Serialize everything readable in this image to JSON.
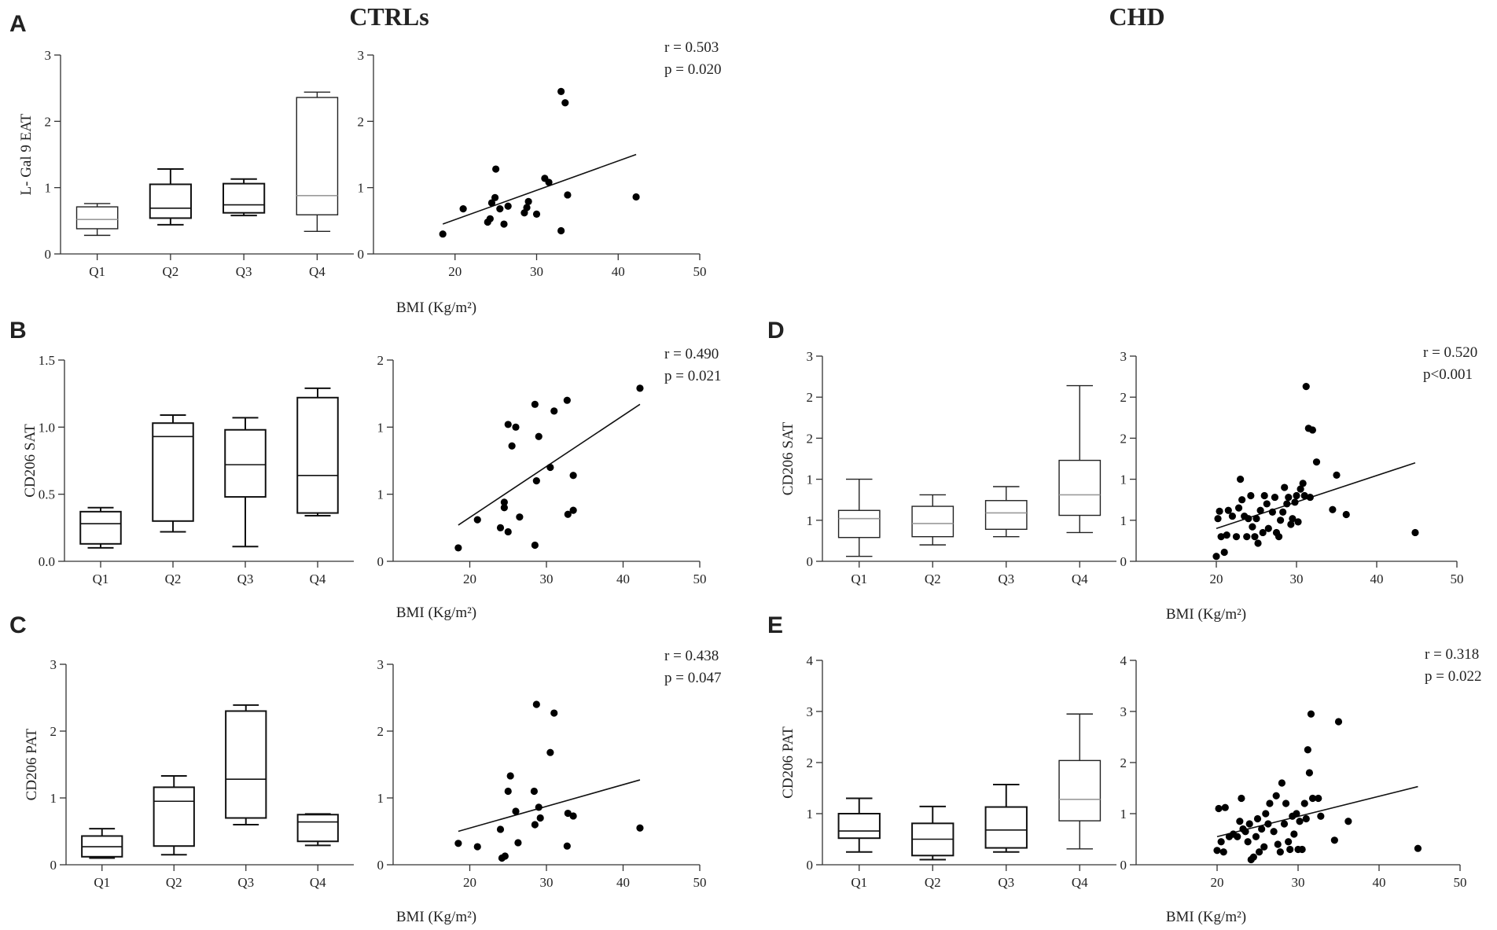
{
  "figure": {
    "column_titles": [
      "CTRLs",
      "CHD"
    ],
    "panel_letters": [
      "A",
      "B",
      "C",
      "D",
      "E"
    ]
  },
  "chart_data": [
    {
      "id": "A-box",
      "type": "box",
      "panel": "A",
      "group": "CTRLs",
      "ylabel": "L- Gal 9 EAT",
      "ylim": [
        0,
        3
      ],
      "yticks": [
        "0",
        "1",
        "2",
        "3"
      ],
      "categories": [
        "Q1",
        "Q2",
        "Q3",
        "Q4"
      ],
      "boxes": [
        {
          "min": 0.28,
          "q1": 0.38,
          "median": 0.52,
          "q3": 0.71,
          "max": 0.76,
          "style": "thin"
        },
        {
          "min": 0.44,
          "q1": 0.54,
          "median": 0.69,
          "q3": 1.05,
          "max": 1.28,
          "style": "thick"
        },
        {
          "min": 0.58,
          "q1": 0.62,
          "median": 0.74,
          "q3": 1.06,
          "max": 1.13,
          "style": "thick"
        },
        {
          "min": 0.34,
          "q1": 0.59,
          "median": 0.88,
          "q3": 2.36,
          "max": 2.44,
          "style": "thin"
        }
      ]
    },
    {
      "id": "A-scatter",
      "type": "scatter",
      "panel": "A",
      "group": "CTRLs",
      "xlim": [
        10,
        50
      ],
      "ylim": [
        0,
        3
      ],
      "xticks": [
        20,
        30,
        40,
        50
      ],
      "yticks": [
        "0",
        "1",
        "2",
        "3"
      ],
      "xlabel": "BMI (Kg/m²)",
      "stats": {
        "r": "r = 0.503",
        "p": "p = 0.020"
      },
      "points": [
        [
          18.5,
          0.3
        ],
        [
          21,
          0.68
        ],
        [
          24,
          0.48
        ],
        [
          24.3,
          0.53
        ],
        [
          24.5,
          0.77
        ],
        [
          24.9,
          0.85
        ],
        [
          25,
          1.28
        ],
        [
          25.5,
          0.68
        ],
        [
          26,
          0.45
        ],
        [
          26.5,
          0.72
        ],
        [
          28.5,
          0.62
        ],
        [
          28.8,
          0.7
        ],
        [
          29,
          0.79
        ],
        [
          30,
          0.6
        ],
        [
          31,
          1.14
        ],
        [
          31.5,
          1.08
        ],
        [
          33,
          0.35
        ],
        [
          33,
          2.45
        ],
        [
          33.5,
          2.28
        ],
        [
          33.8,
          0.89
        ],
        [
          42.2,
          0.86
        ]
      ],
      "fit": [
        [
          18.5,
          0.45
        ],
        [
          42.2,
          1.5
        ]
      ]
    },
    {
      "id": "B-box",
      "type": "box",
      "panel": "B",
      "group": "CTRLs",
      "ylabel": "CD206 SAT",
      "ylim": [
        0,
        1.5
      ],
      "yticks": [
        "0.0",
        "0.5",
        "1.0",
        "1.5"
      ],
      "categories": [
        "Q1",
        "Q2",
        "Q3",
        "Q4"
      ],
      "boxes": [
        {
          "min": 0.1,
          "q1": 0.13,
          "median": 0.28,
          "q3": 0.37,
          "max": 0.4,
          "style": "thick"
        },
        {
          "min": 0.22,
          "q1": 0.3,
          "median": 0.93,
          "q3": 1.03,
          "max": 1.09,
          "style": "thick"
        },
        {
          "min": 0.11,
          "q1": 0.48,
          "median": 0.72,
          "q3": 0.98,
          "max": 1.07,
          "style": "thick"
        },
        {
          "min": 0.34,
          "q1": 0.36,
          "median": 0.64,
          "q3": 1.22,
          "max": 1.29,
          "style": "thick"
        }
      ]
    },
    {
      "id": "B-scatter",
      "type": "scatter",
      "panel": "B",
      "group": "CTRLs",
      "xlim": [
        10,
        50
      ],
      "ylim": [
        0,
        1.5
      ],
      "xticks": [
        20,
        30,
        40,
        50
      ],
      "yticks": [
        "0",
        "1",
        "1",
        "2"
      ],
      "xlabel": "BMI (Kg/m²)",
      "stats": {
        "r": "r = 0.490",
        "p": "p = 0.021"
      },
      "points": [
        [
          18.5,
          0.1
        ],
        [
          21,
          0.31
        ],
        [
          24,
          0.25
        ],
        [
          24.5,
          0.4
        ],
        [
          24.5,
          0.44
        ],
        [
          25,
          0.22
        ],
        [
          25,
          1.02
        ],
        [
          25.5,
          0.86
        ],
        [
          26,
          1.0
        ],
        [
          26.5,
          0.33
        ],
        [
          28.5,
          0.12
        ],
        [
          28.5,
          1.17
        ],
        [
          28.7,
          0.6
        ],
        [
          29,
          0.93
        ],
        [
          30.5,
          0.7
        ],
        [
          31,
          1.12
        ],
        [
          32.7,
          1.2
        ],
        [
          32.8,
          0.35
        ],
        [
          33.5,
          0.38
        ],
        [
          33.5,
          0.64
        ],
        [
          42.2,
          1.29
        ]
      ],
      "fit": [
        [
          18.5,
          0.27
        ],
        [
          42.2,
          1.17
        ]
      ]
    },
    {
      "id": "C-box",
      "type": "box",
      "panel": "C",
      "group": "CTRLs",
      "ylabel": "CD206 PAT",
      "ylim": [
        0,
        3
      ],
      "yticks": [
        "0",
        "1",
        "2",
        "3"
      ],
      "categories": [
        "Q1",
        "Q2",
        "Q3",
        "Q4"
      ],
      "boxes": [
        {
          "min": 0.1,
          "q1": 0.12,
          "median": 0.27,
          "q3": 0.43,
          "max": 0.54,
          "style": "thick"
        },
        {
          "min": 0.15,
          "q1": 0.28,
          "median": 0.95,
          "q3": 1.16,
          "max": 1.33,
          "style": "thick"
        },
        {
          "min": 0.6,
          "q1": 0.7,
          "median": 1.28,
          "q3": 2.3,
          "max": 2.39,
          "style": "thick"
        },
        {
          "min": 0.29,
          "q1": 0.35,
          "median": 0.64,
          "q3": 0.75,
          "max": 0.76,
          "style": "thick"
        }
      ]
    },
    {
      "id": "C-scatter",
      "type": "scatter",
      "panel": "C",
      "group": "CTRLs",
      "xlim": [
        10,
        50
      ],
      "ylim": [
        0,
        3
      ],
      "xticks": [
        20,
        30,
        40,
        50
      ],
      "yticks": [
        "0",
        "1",
        "2",
        "3"
      ],
      "xlabel": "BMI (Kg/m²)",
      "stats": {
        "r": "r = 0.438",
        "p": "p = 0.047"
      },
      "points": [
        [
          18.5,
          0.32
        ],
        [
          21,
          0.27
        ],
        [
          24,
          0.53
        ],
        [
          24.2,
          0.1
        ],
        [
          24.6,
          0.13
        ],
        [
          25,
          1.1
        ],
        [
          25.3,
          1.33
        ],
        [
          26,
          0.8
        ],
        [
          26.3,
          0.33
        ],
        [
          28.4,
          1.1
        ],
        [
          28.5,
          0.6
        ],
        [
          28.7,
          2.4
        ],
        [
          29,
          0.86
        ],
        [
          29.2,
          0.7
        ],
        [
          30.5,
          1.68
        ],
        [
          31,
          2.27
        ],
        [
          32.7,
          0.28
        ],
        [
          32.8,
          0.77
        ],
        [
          33.5,
          0.73
        ],
        [
          42.2,
          0.55
        ]
      ],
      "fit": [
        [
          18.5,
          0.5
        ],
        [
          42.2,
          1.27
        ]
      ]
    },
    {
      "id": "D-box",
      "type": "box",
      "panel": "D",
      "group": "CHD",
      "ylabel": "CD206 SAT",
      "ylim": [
        0,
        2.5
      ],
      "yticks": [
        "0",
        "1",
        "1",
        "2",
        "2",
        "3"
      ],
      "categories": [
        "Q1",
        "Q2",
        "Q3",
        "Q4"
      ],
      "boxes": [
        {
          "min": 0.06,
          "q1": 0.29,
          "median": 0.52,
          "q3": 0.62,
          "max": 1.0,
          "style": "thin"
        },
        {
          "min": 0.2,
          "q1": 0.3,
          "median": 0.46,
          "q3": 0.67,
          "max": 0.81,
          "style": "thin"
        },
        {
          "min": 0.3,
          "q1": 0.39,
          "median": 0.59,
          "q3": 0.74,
          "max": 0.91,
          "style": "thin"
        },
        {
          "min": 0.35,
          "q1": 0.56,
          "median": 0.81,
          "q3": 1.23,
          "max": 2.14,
          "style": "thin"
        }
      ]
    },
    {
      "id": "D-scatter",
      "type": "scatter",
      "panel": "D",
      "group": "CHD",
      "xlim": [
        10,
        50
      ],
      "ylim": [
        0,
        2.5
      ],
      "xticks": [
        20,
        30,
        40,
        50
      ],
      "yticks": [
        "0",
        "1",
        "1",
        "2",
        "2",
        "3"
      ],
      "xlabel": "BMI (Kg/m²)",
      "stats": {
        "r": "r = 0.520",
        "p": "p<0.001"
      },
      "points": [
        [
          20,
          0.06
        ],
        [
          20.2,
          0.52
        ],
        [
          20.4,
          0.61
        ],
        [
          20.6,
          0.3
        ],
        [
          21,
          0.11
        ],
        [
          21.3,
          0.32
        ],
        [
          21.5,
          0.62
        ],
        [
          22,
          0.55
        ],
        [
          22.5,
          0.3
        ],
        [
          22.8,
          0.65
        ],
        [
          23,
          1.0
        ],
        [
          23.2,
          0.75
        ],
        [
          23.5,
          0.55
        ],
        [
          23.8,
          0.3
        ],
        [
          24,
          0.52
        ],
        [
          24.3,
          0.8
        ],
        [
          24.5,
          0.42
        ],
        [
          24.8,
          0.3
        ],
        [
          25,
          0.52
        ],
        [
          25.2,
          0.22
        ],
        [
          25.5,
          0.62
        ],
        [
          25.8,
          0.35
        ],
        [
          26,
          0.8
        ],
        [
          26.3,
          0.7
        ],
        [
          26.5,
          0.4
        ],
        [
          27,
          0.6
        ],
        [
          27.3,
          0.78
        ],
        [
          27.5,
          0.35
        ],
        [
          27.8,
          0.3
        ],
        [
          28,
          0.5
        ],
        [
          28.3,
          0.6
        ],
        [
          28.5,
          0.9
        ],
        [
          28.8,
          0.7
        ],
        [
          29,
          0.78
        ],
        [
          29.3,
          0.45
        ],
        [
          29.5,
          0.52
        ],
        [
          29.8,
          0.72
        ],
        [
          30,
          0.8
        ],
        [
          30.2,
          0.48
        ],
        [
          30.5,
          0.88
        ],
        [
          30.8,
          0.95
        ],
        [
          31,
          0.8
        ],
        [
          31.2,
          2.13
        ],
        [
          31.5,
          1.62
        ],
        [
          31.7,
          0.78
        ],
        [
          32,
          1.6
        ],
        [
          32.5,
          1.21
        ],
        [
          34.5,
          0.63
        ],
        [
          35,
          1.05
        ],
        [
          36.2,
          0.57
        ],
        [
          44.8,
          0.35
        ]
      ],
      "fit": [
        [
          20,
          0.4
        ],
        [
          44.8,
          1.2
        ]
      ]
    },
    {
      "id": "E-box",
      "type": "box",
      "panel": "E",
      "group": "CHD",
      "ylabel": "CD206 PAT",
      "ylim": [
        0,
        4
      ],
      "yticks": [
        "0",
        "1",
        "2",
        "3",
        "4"
      ],
      "categories": [
        "Q1",
        "Q2",
        "Q3",
        "Q4"
      ],
      "boxes": [
        {
          "min": 0.25,
          "q1": 0.52,
          "median": 0.66,
          "q3": 1.0,
          "max": 1.3,
          "style": "thick"
        },
        {
          "min": 0.1,
          "q1": 0.18,
          "median": 0.5,
          "q3": 0.81,
          "max": 1.14,
          "style": "thick"
        },
        {
          "min": 0.25,
          "q1": 0.33,
          "median": 0.68,
          "q3": 1.13,
          "max": 1.57,
          "style": "thick"
        },
        {
          "min": 0.31,
          "q1": 0.86,
          "median": 1.28,
          "q3": 2.04,
          "max": 2.95,
          "style": "thin"
        }
      ]
    },
    {
      "id": "E-scatter",
      "type": "scatter",
      "panel": "E",
      "group": "CHD",
      "xlim": [
        10,
        50
      ],
      "ylim": [
        0,
        4
      ],
      "xticks": [
        20,
        30,
        40,
        50
      ],
      "yticks": [
        "0",
        "1",
        "2",
        "3",
        "4"
      ],
      "xlabel": "BMI (Kg/m²)",
      "stats": {
        "r": "r = 0.318",
        "p": "p = 0.022"
      },
      "points": [
        [
          20,
          0.28
        ],
        [
          20.2,
          1.1
        ],
        [
          20.5,
          0.45
        ],
        [
          20.8,
          0.25
        ],
        [
          21,
          1.12
        ],
        [
          21.5,
          0.55
        ],
        [
          22,
          0.6
        ],
        [
          22.5,
          0.55
        ],
        [
          22.8,
          0.85
        ],
        [
          23,
          1.3
        ],
        [
          23.2,
          0.7
        ],
        [
          23.5,
          0.65
        ],
        [
          23.8,
          0.45
        ],
        [
          24,
          0.8
        ],
        [
          24.2,
          0.1
        ],
        [
          24.5,
          0.15
        ],
        [
          24.8,
          0.55
        ],
        [
          25,
          0.9
        ],
        [
          25.2,
          0.25
        ],
        [
          25.5,
          0.7
        ],
        [
          25.8,
          0.35
        ],
        [
          26,
          1.0
        ],
        [
          26.3,
          0.8
        ],
        [
          26.5,
          1.2
        ],
        [
          27,
          0.65
        ],
        [
          27.3,
          1.35
        ],
        [
          27.5,
          0.4
        ],
        [
          27.8,
          0.25
        ],
        [
          28,
          1.6
        ],
        [
          28.3,
          0.8
        ],
        [
          28.5,
          1.2
        ],
        [
          28.8,
          0.45
        ],
        [
          29,
          0.3
        ],
        [
          29.3,
          0.95
        ],
        [
          29.5,
          0.6
        ],
        [
          29.8,
          1.0
        ],
        [
          30,
          0.3
        ],
        [
          30.2,
          0.85
        ],
        [
          30.5,
          0.3
        ],
        [
          30.8,
          1.2
        ],
        [
          31,
          0.9
        ],
        [
          31.2,
          2.25
        ],
        [
          31.4,
          1.8
        ],
        [
          31.6,
          2.95
        ],
        [
          31.8,
          1.3
        ],
        [
          32.5,
          1.3
        ],
        [
          32.8,
          0.95
        ],
        [
          34.5,
          0.48
        ],
        [
          35,
          2.8
        ],
        [
          36.2,
          0.85
        ],
        [
          44.8,
          0.32
        ]
      ],
      "fit": [
        [
          20,
          0.55
        ],
        [
          44.8,
          1.53
        ]
      ]
    }
  ]
}
